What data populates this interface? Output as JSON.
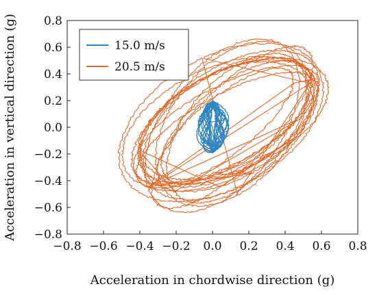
{
  "chart_data": {
    "type": "line",
    "title": "",
    "xlabel": "Acceleration in chordwise direction (g)",
    "ylabel": "Acceleration in vertical direction (g)",
    "xlim": [
      -0.8,
      0.8
    ],
    "ylim": [
      -0.8,
      0.8
    ],
    "xticks": [
      "−0.8",
      "−0.6",
      "−0.4",
      "−0.2",
      "0.0",
      "0.2",
      "0.4",
      "0.6",
      "0.8"
    ],
    "yticks": [
      "0.8",
      "0.6",
      "0.4",
      "0.2",
      "0.0",
      "−0.2",
      "−0.4",
      "−0.6",
      "−0.8"
    ],
    "grid": false,
    "legend_position": "top-left",
    "series": [
      {
        "name": "15.0 m/s",
        "color": "#2e86c1",
        "shape": "ellipse-orbit",
        "center": [
          0.0,
          0.0
        ],
        "x_amplitude": 0.09,
        "y_amplitude": 0.19,
        "tilt_slope": 0.25,
        "cycles": 14
      },
      {
        "name": "20.5 m/s",
        "color": "#e06a2c",
        "shape": "ellipse-orbit",
        "center": [
          0.08,
          0.02
        ],
        "x_amplitude": 0.67,
        "y_amplitude": 0.74,
        "major_axis_slope": 1.1,
        "cycles": 16
      }
    ]
  }
}
